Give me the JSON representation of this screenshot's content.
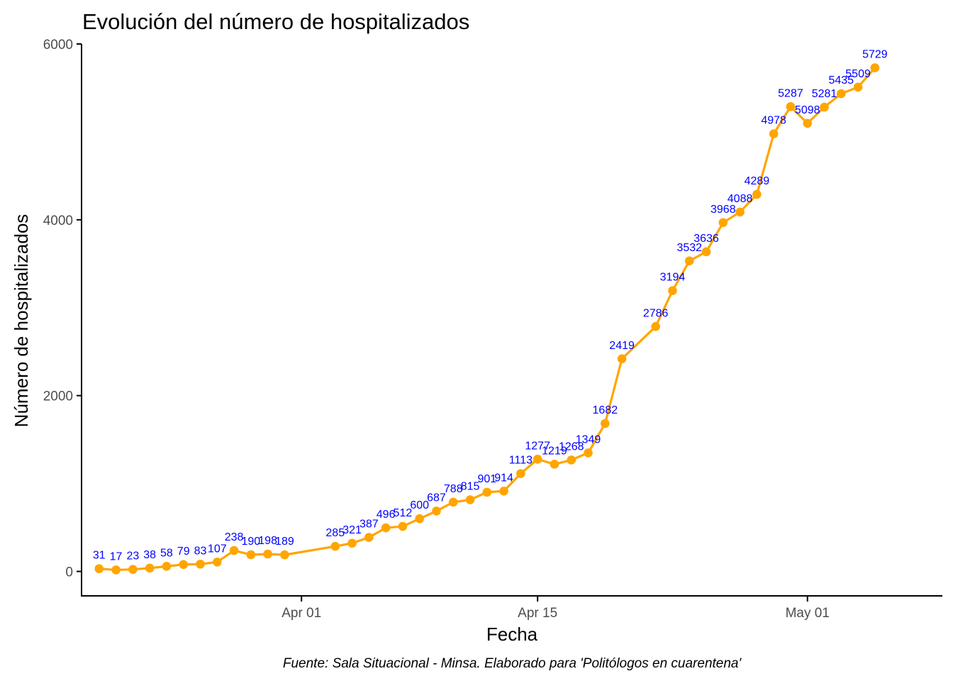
{
  "chart_data": {
    "type": "line",
    "title": "Evolución del número de hospitalizados",
    "xlabel": "Fecha",
    "ylabel": "Número de hospitalizados",
    "caption": "Fuente: Sala Situacional - Minsa. Elaborado para 'Politólogos en cuarentena'",
    "xlim": [
      "2020-03-19",
      "2020-05-09"
    ],
    "ylim": [
      -270,
      6000
    ],
    "x_ticks": [
      {
        "date": "2020-04-01",
        "label": "Apr 01"
      },
      {
        "date": "2020-04-15",
        "label": "Apr 15"
      },
      {
        "date": "2020-05-01",
        "label": "May 01"
      }
    ],
    "y_ticks": [
      0,
      2000,
      4000,
      6000
    ],
    "grid": false,
    "line_color": "#FFA500",
    "label_color": "#0000FF",
    "points": [
      {
        "x": "2020-03-20",
        "y": 31
      },
      {
        "x": "2020-03-21",
        "y": 17
      },
      {
        "x": "2020-03-22",
        "y": 23
      },
      {
        "x": "2020-03-23",
        "y": 38
      },
      {
        "x": "2020-03-24",
        "y": 58
      },
      {
        "x": "2020-03-25",
        "y": 79
      },
      {
        "x": "2020-03-26",
        "y": 83
      },
      {
        "x": "2020-03-27",
        "y": 107
      },
      {
        "x": "2020-03-28",
        "y": 238
      },
      {
        "x": "2020-03-29",
        "y": 190
      },
      {
        "x": "2020-03-30",
        "y": 198
      },
      {
        "x": "2020-03-31",
        "y": 189
      },
      {
        "x": "2020-04-03",
        "y": 285
      },
      {
        "x": "2020-04-04",
        "y": 321
      },
      {
        "x": "2020-04-05",
        "y": 387
      },
      {
        "x": "2020-04-06",
        "y": 496
      },
      {
        "x": "2020-04-07",
        "y": 512
      },
      {
        "x": "2020-04-08",
        "y": 600
      },
      {
        "x": "2020-04-09",
        "y": 687
      },
      {
        "x": "2020-04-10",
        "y": 788
      },
      {
        "x": "2020-04-11",
        "y": 815
      },
      {
        "x": "2020-04-12",
        "y": 901
      },
      {
        "x": "2020-04-13",
        "y": 914
      },
      {
        "x": "2020-04-14",
        "y": 1113
      },
      {
        "x": "2020-04-15",
        "y": 1277
      },
      {
        "x": "2020-04-16",
        "y": 1219
      },
      {
        "x": "2020-04-17",
        "y": 1268
      },
      {
        "x": "2020-04-18",
        "y": 1349
      },
      {
        "x": "2020-04-19",
        "y": 1682
      },
      {
        "x": "2020-04-20",
        "y": 2419
      },
      {
        "x": "2020-04-22",
        "y": 2786
      },
      {
        "x": "2020-04-23",
        "y": 3194
      },
      {
        "x": "2020-04-24",
        "y": 3532
      },
      {
        "x": "2020-04-25",
        "y": 3636
      },
      {
        "x": "2020-04-26",
        "y": 3968
      },
      {
        "x": "2020-04-27",
        "y": 4088
      },
      {
        "x": "2020-04-28",
        "y": 4289
      },
      {
        "x": "2020-04-29",
        "y": 4978
      },
      {
        "x": "2020-04-30",
        "y": 5287
      },
      {
        "x": "2020-05-01",
        "y": 5098
      },
      {
        "x": "2020-05-02",
        "y": 5281
      },
      {
        "x": "2020-05-03",
        "y": 5435
      },
      {
        "x": "2020-05-04",
        "y": 5509
      },
      {
        "x": "2020-05-05",
        "y": 5729
      }
    ]
  }
}
